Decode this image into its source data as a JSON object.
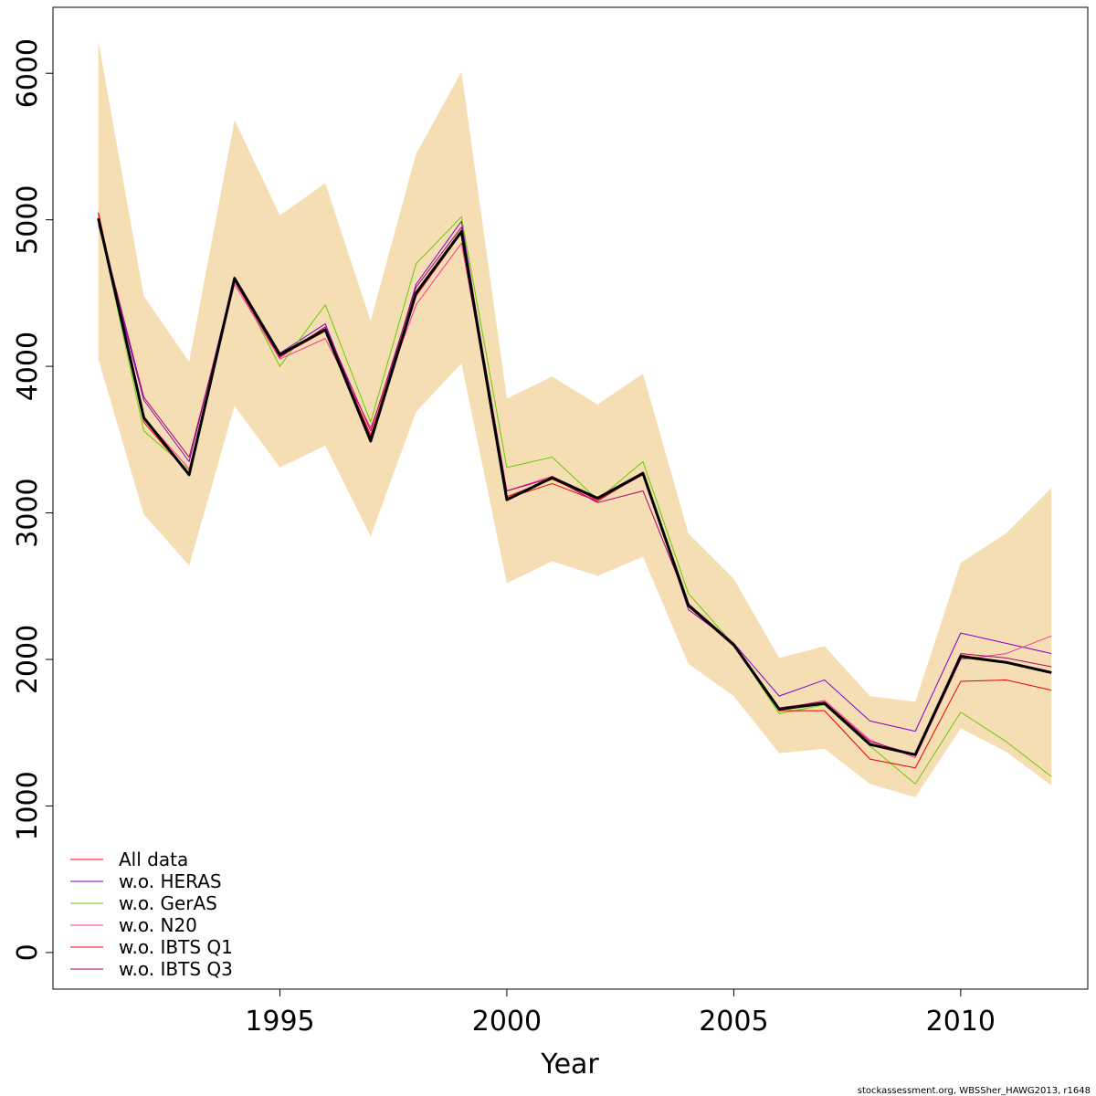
{
  "chart_data": {
    "type": "line",
    "xlabel": "Year",
    "ylabel": "",
    "xlim": [
      1990.0,
      2012.8
    ],
    "ylim": [
      -250,
      6450
    ],
    "x_ticks": [
      "1995",
      "2000",
      "2005",
      "2010"
    ],
    "y_ticks": [
      "0",
      "1000",
      "2000",
      "3000",
      "4000",
      "5000",
      "6000"
    ],
    "x": [
      1991,
      1992,
      1993,
      1994,
      1995,
      1996,
      1997,
      1998,
      1999,
      2000,
      2001,
      2002,
      2003,
      2004,
      2005,
      2006,
      2007,
      2008,
      2009,
      2010,
      2011,
      2012
    ],
    "confidence_band": {
      "color": "#f5deb3",
      "lower": [
        4050,
        2990,
        2640,
        3730,
        3310,
        3460,
        2840,
        3690,
        4020,
        2520,
        2670,
        2570,
        2700,
        1970,
        1750,
        1360,
        1390,
        1150,
        1060,
        1530,
        1370,
        1140
      ],
      "upper": [
        6220,
        4480,
        4030,
        5680,
        5030,
        5250,
        4310,
        5450,
        6010,
        3780,
        3930,
        3740,
        3950,
        2860,
        2550,
        2010,
        2090,
        1750,
        1710,
        2660,
        2860,
        3170
      ]
    },
    "series": [
      {
        "name": "All data",
        "color": "#ff0000",
        "width": 1,
        "values": [
          5050,
          3640,
          3270,
          4590,
          4080,
          4250,
          3520,
          4480,
          4910,
          3110,
          3230,
          3090,
          3260,
          2370,
          2110,
          1660,
          1700,
          1420,
          1350,
          2030,
          1980,
          1910
        ]
      },
      {
        "name": "w.o. HERAS",
        "color": "#7f00cc",
        "width": 1,
        "values": [
          4970,
          3770,
          3350,
          4610,
          4090,
          4290,
          3510,
          4560,
          4990,
          3090,
          3240,
          3100,
          3270,
          2340,
          2110,
          1750,
          1860,
          1580,
          1510,
          2180,
          2110,
          2040
        ]
      },
      {
        "name": "w.o. GerAS",
        "color": "#66cc00",
        "width": 1,
        "values": [
          5000,
          3560,
          3290,
          4600,
          4000,
          4420,
          3620,
          4700,
          5020,
          3310,
          3380,
          3090,
          3350,
          2450,
          2100,
          1630,
          1690,
          1410,
          1150,
          1640,
          1440,
          1200
        ]
      },
      {
        "name": "w.o. N20",
        "color": "#ff3399",
        "width": 1,
        "values": [
          5020,
          3650,
          3300,
          4560,
          4050,
          4190,
          3580,
          4420,
          4840,
          3150,
          3250,
          3080,
          3280,
          2360,
          2100,
          1660,
          1720,
          1450,
          1330,
          2000,
          2040,
          2160
        ]
      },
      {
        "name": "w.o. IBTS Q1",
        "color": "#e60000",
        "width": 1,
        "values": [
          5040,
          3620,
          3260,
          4580,
          4070,
          4240,
          3530,
          4490,
          4920,
          3100,
          3200,
          3080,
          3270,
          2360,
          2090,
          1650,
          1650,
          1320,
          1260,
          1850,
          1860,
          1790
        ]
      },
      {
        "name": "w.o. IBTS Q3",
        "color": "#b0006b",
        "width": 1,
        "values": [
          5000,
          3790,
          3380,
          4580,
          4060,
          4270,
          3560,
          4540,
          4950,
          3150,
          3240,
          3070,
          3150,
          2380,
          2110,
          1670,
          1710,
          1440,
          1350,
          2040,
          2010,
          1950
        ]
      },
      {
        "color": "#000000",
        "width": 3,
        "values": [
          5010,
          3650,
          3260,
          4600,
          4080,
          4250,
          3490,
          4500,
          4920,
          3090,
          3240,
          3100,
          3270,
          2370,
          2100,
          1660,
          1700,
          1420,
          1350,
          2020,
          1980,
          1910
        ]
      }
    ],
    "legend": {
      "placement": "bottom-left",
      "entries": [
        "All data",
        "w.o. HERAS",
        "w.o. GerAS",
        "w.o. N20",
        "w.o. IBTS Q1",
        "w.o. IBTS Q3"
      ],
      "colors": [
        "#ff0000",
        "#7f00cc",
        "#66cc00",
        "#ff3399",
        "#e60000",
        "#b0006b"
      ]
    },
    "grid": false
  },
  "credit": "stockassessment.org, WBSSher_HAWG2013, r1648"
}
